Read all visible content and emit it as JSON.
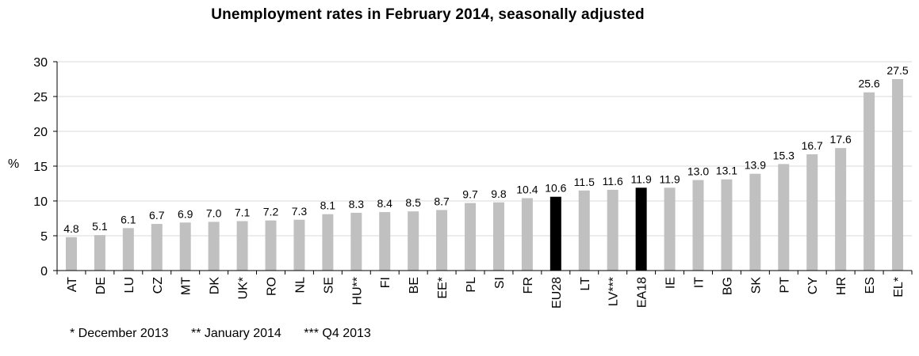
{
  "chart_data": {
    "type": "bar",
    "title": "Unemployment rates in February 2014, seasonally adjusted",
    "ylabel": "%",
    "xlabel": "",
    "ylim": [
      0,
      30
    ],
    "yticks": [
      0,
      5,
      10,
      15,
      20,
      25,
      30
    ],
    "grid": true,
    "legend": "none",
    "categories": [
      "AT",
      "DE",
      "LU",
      "CZ",
      "MT",
      "DK",
      "UK*",
      "RO",
      "NL",
      "SE",
      "HU**",
      "FI",
      "BE",
      "EE*",
      "PL",
      "SI",
      "FR",
      "EU28",
      "LT",
      "LV***",
      "EA18",
      "IE",
      "IT",
      "BG",
      "SK",
      "PT",
      "CY",
      "HR",
      "ES",
      "EL*"
    ],
    "values": [
      4.8,
      5.1,
      6.1,
      6.7,
      6.9,
      7.0,
      7.1,
      7.2,
      7.3,
      8.1,
      8.3,
      8.4,
      8.5,
      8.7,
      9.7,
      9.8,
      10.4,
      10.6,
      11.5,
      11.6,
      11.9,
      11.9,
      13.0,
      13.1,
      13.9,
      15.3,
      16.7,
      17.6,
      25.6,
      27.5
    ],
    "value_labels": [
      "4.8",
      "5.1",
      "6.1",
      "6.7",
      "6.9",
      "7.0",
      "7.1",
      "7.2",
      "7.3",
      "8.1",
      "8.3",
      "8.4",
      "8.5",
      "8.7",
      "9.7",
      "9.8",
      "10.4",
      "10.6",
      "11.5",
      "11.6",
      "11.9",
      "11.9",
      "13.0",
      "13.1",
      "13.9",
      "15.3",
      "16.7",
      "17.6",
      "25.6",
      "27.5"
    ],
    "highlighted": [
      "EU28",
      "EA18"
    ],
    "colors": {
      "bar": "#c0c0c0",
      "highlight": "#000000",
      "grid": "#d9d9d9",
      "axis": "#000000"
    }
  },
  "footnotes": [
    "* December 2013",
    "** January 2014",
    "*** Q4 2013"
  ]
}
